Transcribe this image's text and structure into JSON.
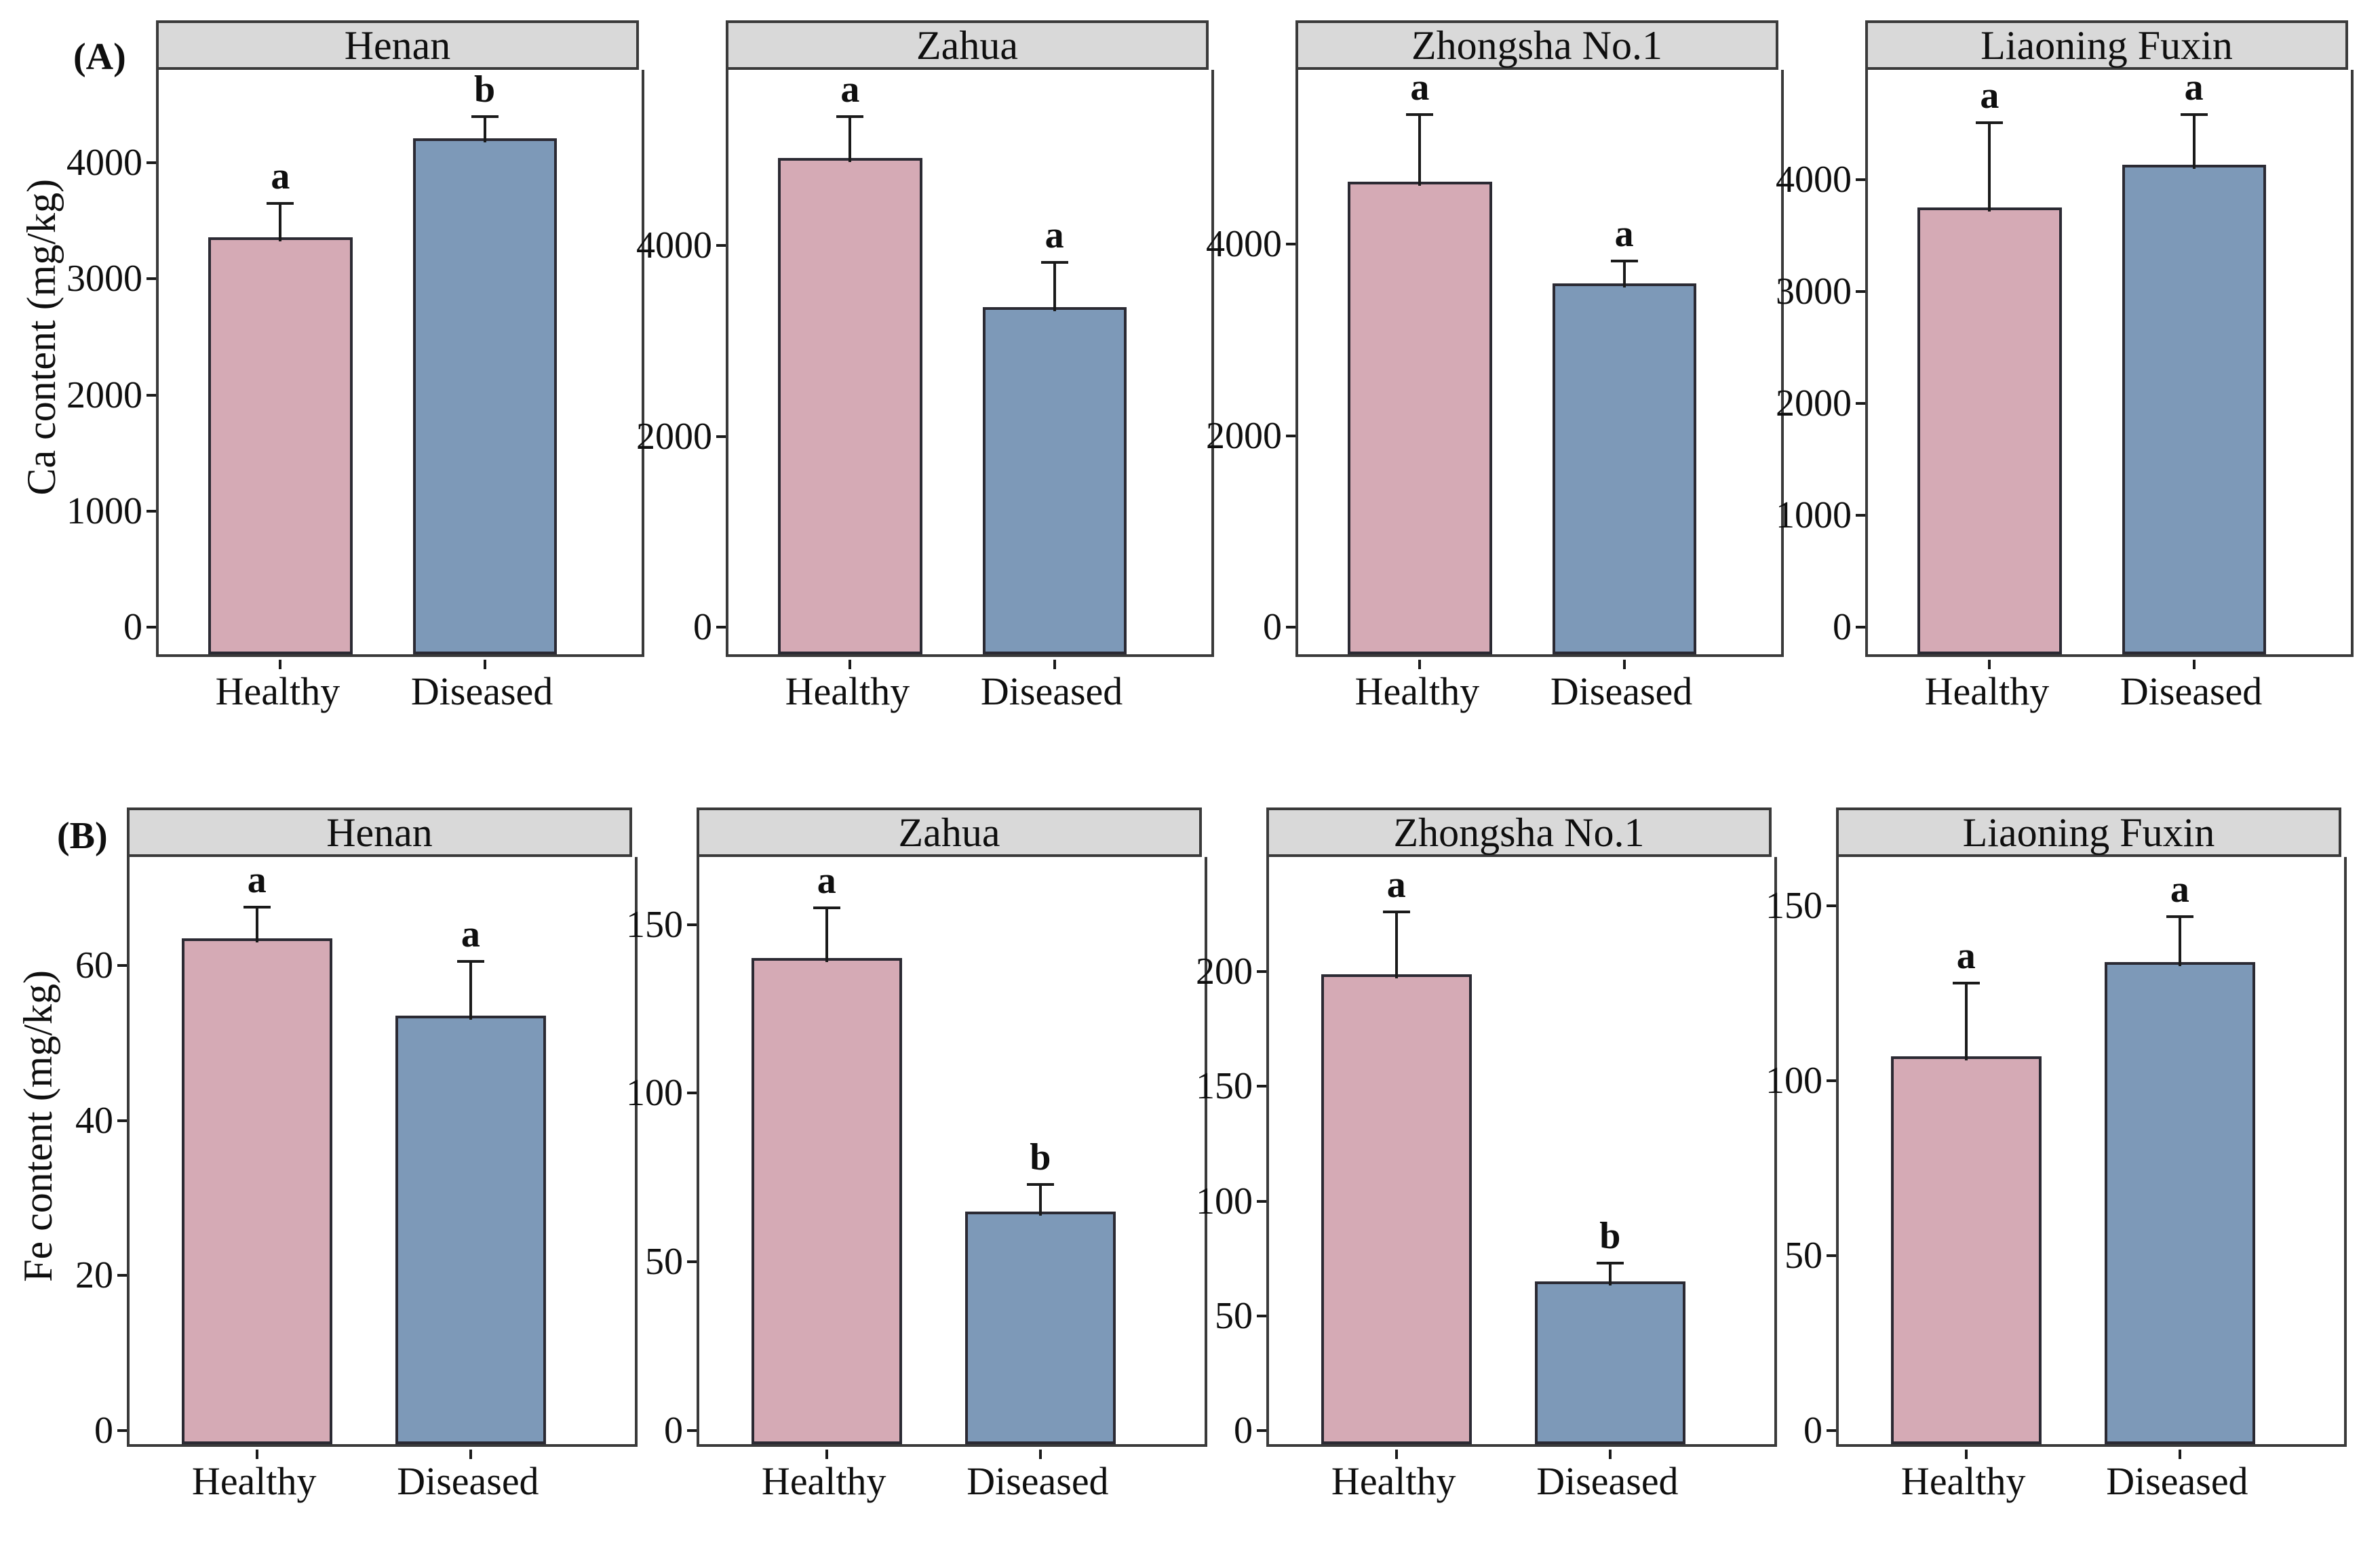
{
  "panel_labels": {
    "a": "(A)",
    "b": "(B)"
  },
  "categories": [
    "Healthy",
    "Diseased"
  ],
  "colors": {
    "healthy_fill": "#D5AAB5",
    "diseased_fill": "#7D99B8",
    "strip_bg": "#D9D9D9",
    "panel_border": "#3A3A3A",
    "bar_border": "#2B2A33",
    "error_bar": "#1A1A1A",
    "text": "#0F0F0F"
  },
  "chart_data": [
    {
      "type": "bar",
      "row_label": "(A)",
      "ylabel": "Ca content (mg/kg)",
      "categories": [
        "Healthy",
        "Diseased"
      ],
      "legend_position": "none",
      "grid": false,
      "panels": [
        {
          "title": "Henan",
          "ylim": [
            0,
            4800
          ],
          "yticks": [
            0,
            1000,
            2000,
            3000,
            4000
          ],
          "series": [
            {
              "category": "Healthy",
              "value": 3360,
              "error_top": 3650,
              "sig_letter": "a"
            },
            {
              "category": "Diseased",
              "value": 4210,
              "error_top": 4400,
              "sig_letter": "b"
            }
          ]
        },
        {
          "title": "Zahua",
          "ylim": [
            0,
            5840
          ],
          "yticks": [
            0,
            2000,
            4000
          ],
          "series": [
            {
              "category": "Healthy",
              "value": 4920,
              "error_top": 5350,
              "sig_letter": "a"
            },
            {
              "category": "Diseased",
              "value": 3350,
              "error_top": 3820,
              "sig_letter": "a"
            }
          ]
        },
        {
          "title": "Zhongsha No.1",
          "ylim": [
            0,
            5820
          ],
          "yticks": [
            0,
            2000,
            4000
          ],
          "series": [
            {
              "category": "Healthy",
              "value": 4650,
              "error_top": 5350,
              "sig_letter": "a"
            },
            {
              "category": "Diseased",
              "value": 3590,
              "error_top": 3820,
              "sig_letter": "a"
            }
          ]
        },
        {
          "title": "Liaoning Fuxin",
          "ylim": [
            0,
            4980
          ],
          "yticks": [
            0,
            1000,
            2000,
            3000,
            4000
          ],
          "series": [
            {
              "category": "Healthy",
              "value": 3750,
              "error_top": 4510,
              "sig_letter": "a"
            },
            {
              "category": "Diseased",
              "value": 4130,
              "error_top": 4580,
              "sig_letter": "a"
            }
          ]
        }
      ]
    },
    {
      "type": "bar",
      "row_label": "(B)",
      "ylabel": "Fe content (mg/kg)",
      "categories": [
        "Healthy",
        "Diseased"
      ],
      "legend_position": "none",
      "grid": false,
      "panels": [
        {
          "title": "Henan",
          "ylim": [
            0,
            74
          ],
          "yticks": [
            0,
            20,
            40,
            60
          ],
          "series": [
            {
              "category": "Healthy",
              "value": 63.5,
              "error_top": 67.5,
              "sig_letter": "a"
            },
            {
              "category": "Diseased",
              "value": 53.5,
              "error_top": 60.5,
              "sig_letter": "a"
            }
          ]
        },
        {
          "title": "Zahua",
          "ylim": [
            0,
            170
          ],
          "yticks": [
            0,
            50,
            100,
            150
          ],
          "series": [
            {
              "category": "Healthy",
              "value": 140,
              "error_top": 155,
              "sig_letter": "a"
            },
            {
              "category": "Diseased",
              "value": 65,
              "error_top": 73,
              "sig_letter": "b"
            }
          ]
        },
        {
          "title": "Zhongsha No.1",
          "ylim": [
            0,
            250
          ],
          "yticks": [
            0,
            50,
            100,
            150,
            200
          ],
          "series": [
            {
              "category": "Healthy",
              "value": 199,
              "error_top": 226,
              "sig_letter": "a"
            },
            {
              "category": "Diseased",
              "value": 65,
              "error_top": 73,
              "sig_letter": "b"
            }
          ]
        },
        {
          "title": "Liaoning Fuxin",
          "ylim": [
            0,
            164
          ],
          "yticks": [
            0,
            50,
            100,
            150
          ],
          "series": [
            {
              "category": "Healthy",
              "value": 107,
              "error_top": 128,
              "sig_letter": "a"
            },
            {
              "category": "Diseased",
              "value": 134,
              "error_top": 147,
              "sig_letter": "a"
            }
          ]
        }
      ]
    }
  ]
}
